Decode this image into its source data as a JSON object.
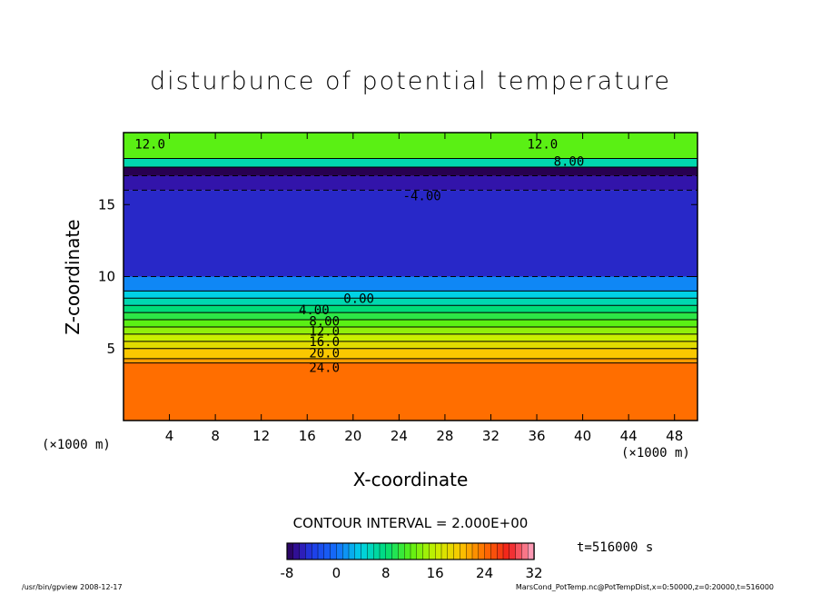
{
  "chart_data": {
    "type": "heatmap",
    "title": "disturbunce of potential temperature",
    "xlabel": "X-coordinate",
    "ylabel": "Z-coordinate",
    "x_unit_left": "(×1000 m)",
    "x_unit_right": "(×1000 m)",
    "xlim": [
      0,
      50
    ],
    "ylim": [
      0,
      20
    ],
    "x_ticks": [
      4,
      8,
      12,
      16,
      20,
      24,
      28,
      32,
      36,
      40,
      44,
      48
    ],
    "y_ticks": [
      5,
      10,
      15
    ],
    "contour_interval_text": "CONTOUR INTERVAL = 2.000E+00",
    "time_text": "t=516000 s",
    "colorbar": {
      "min": -8,
      "max": 32,
      "ticks": [
        -8,
        0,
        8,
        16,
        24,
        32
      ]
    },
    "layers": [
      {
        "z_bottom": 0,
        "z_top": 4,
        "value": 24
      },
      {
        "z_bottom": 4,
        "z_top": 4.3,
        "value": 22
      },
      {
        "z_bottom": 4.3,
        "z_top": 5,
        "value": 20
      },
      {
        "z_bottom": 5,
        "z_top": 5.5,
        "value": 18
      },
      {
        "z_bottom": 5.5,
        "z_top": 6,
        "value": 16
      },
      {
        "z_bottom": 6,
        "z_top": 6.5,
        "value": 14
      },
      {
        "z_bottom": 6.5,
        "z_top": 7,
        "value": 12
      },
      {
        "z_bottom": 7,
        "z_top": 7.5,
        "value": 10
      },
      {
        "z_bottom": 7.5,
        "z_top": 8,
        "value": 8
      },
      {
        "z_bottom": 8,
        "z_top": 8.5,
        "value": 6
      },
      {
        "z_bottom": 8.5,
        "z_top": 9,
        "value": 4
      },
      {
        "z_bottom": 9,
        "z_top": 10,
        "value": 1
      },
      {
        "z_bottom": 10,
        "z_top": 16,
        "value": -5
      },
      {
        "z_bottom": 16,
        "z_top": 17,
        "value": -6
      },
      {
        "z_bottom": 17,
        "z_top": 17.6,
        "value": -8
      },
      {
        "z_bottom": 17.6,
        "z_top": 18.2,
        "value": 6
      },
      {
        "z_bottom": 18.2,
        "z_top": 20,
        "value": 12
      }
    ],
    "contour_labels": [
      {
        "text": "24.0",
        "x": 17.5,
        "z": 3.7
      },
      {
        "text": "20.0",
        "x": 17.5,
        "z": 4.7
      },
      {
        "text": "16.0",
        "x": 17.5,
        "z": 5.5
      },
      {
        "text": "12.0",
        "x": 17.5,
        "z": 6.2
      },
      {
        "text": "8.00",
        "x": 17.5,
        "z": 6.9
      },
      {
        "text": "4.00",
        "x": 16.6,
        "z": 7.7
      },
      {
        "text": "0.00",
        "x": 20.5,
        "z": 8.5
      },
      {
        "text": "-4.00",
        "x": 26.0,
        "z": 15.6
      },
      {
        "text": "12.0",
        "x": 2.3,
        "z": 19.2
      },
      {
        "text": "12.0",
        "x": 36.5,
        "z": 19.2
      },
      {
        "text": "8.00",
        "x": 38.8,
        "z": 18.0
      }
    ]
  },
  "footer": {
    "left": "/usr/bin/gpview   2008-12-17",
    "right": "MarsCond_PotTemp.nc@PotTempDist,x=0:50000,z=0:20000,t=516000"
  }
}
